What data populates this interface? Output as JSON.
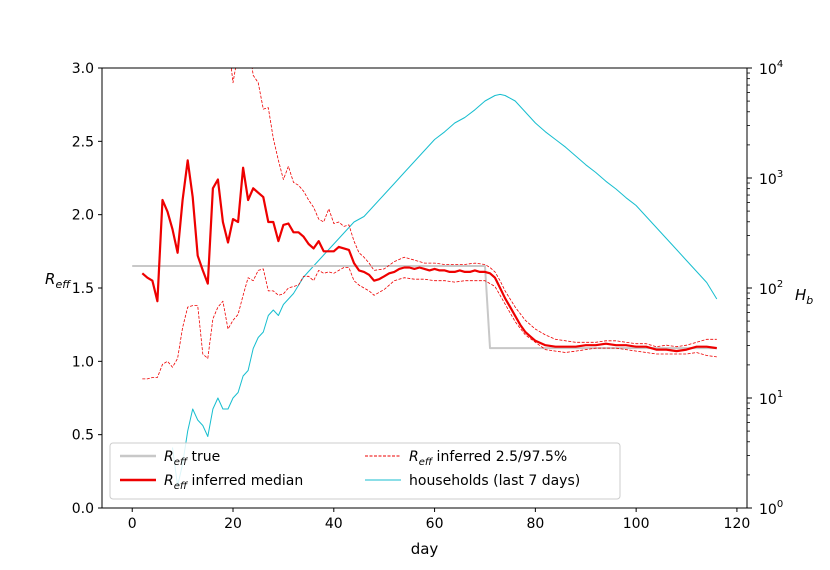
{
  "chart_data": {
    "type": "line",
    "xlabel": "day",
    "ylabel_left": "R",
    "ylabel_left_sub": "eff",
    "ylabel_right": "H",
    "ylabel_right_sub": "b",
    "xlim": [
      -6,
      122
    ],
    "ylim_left": [
      0,
      3
    ],
    "ylim_right_log10": [
      0,
      4
    ],
    "x_ticks": [
      0,
      20,
      40,
      60,
      80,
      100,
      120
    ],
    "y_left_ticks": [
      0.0,
      0.5,
      1.0,
      1.5,
      2.0,
      2.5,
      3.0
    ],
    "y_left_tick_labels": [
      "0.0",
      "0.5",
      "1.0",
      "1.5",
      "2.0",
      "2.5",
      "3.0"
    ],
    "y_right_ticks_exp": [
      0,
      1,
      2,
      3,
      4
    ],
    "y_right_tick_base": "10",
    "legend": {
      "position": "lower-left",
      "entries": [
        {
          "sym": "R",
          "sub": "eff",
          "text": " true",
          "color": "#c8c8c8",
          "style": "solid-thick"
        },
        {
          "sym": "R",
          "sub": "eff",
          "text": " inferred median",
          "color": "#ee0000",
          "style": "solid-bold"
        },
        {
          "sym": "R",
          "sub": "eff",
          "text": " inferred 2.5/97.5%",
          "color": "#ee0000",
          "style": "dashed"
        },
        {
          "sym": "",
          "sub": "",
          "text": "households (last 7 days)",
          "color": "#17becf",
          "style": "solid-thin"
        }
      ]
    },
    "series": {
      "true": {
        "color": "#c8c8c8",
        "x": [
          0,
          70,
          71,
          116
        ],
        "y": [
          1.65,
          1.65,
          1.09,
          1.09
        ]
      },
      "median": {
        "color": "#ee0000",
        "x": [
          2,
          3,
          4,
          5,
          6,
          7,
          8,
          9,
          10,
          11,
          12,
          13,
          14,
          15,
          16,
          17,
          18,
          19,
          20,
          21,
          22,
          23,
          24,
          25,
          26,
          27,
          28,
          29,
          30,
          31,
          32,
          33,
          34,
          35,
          36,
          37,
          38,
          39,
          40,
          41,
          42,
          43,
          44,
          45,
          46,
          47,
          48,
          49,
          50,
          51,
          52,
          53,
          54,
          55,
          56,
          57,
          58,
          59,
          60,
          61,
          62,
          63,
          64,
          65,
          66,
          67,
          68,
          69,
          70,
          71,
          72,
          73,
          74,
          75,
          76,
          77,
          78,
          79,
          80,
          82,
          84,
          86,
          88,
          90,
          92,
          94,
          96,
          98,
          100,
          102,
          104,
          106,
          108,
          110,
          112,
          114,
          116
        ],
        "y": [
          1.6,
          1.57,
          1.55,
          1.41,
          2.1,
          2.02,
          1.9,
          1.74,
          2.1,
          2.37,
          2.12,
          1.72,
          1.62,
          1.53,
          2.18,
          2.24,
          1.95,
          1.81,
          1.97,
          1.95,
          2.32,
          2.1,
          2.18,
          2.15,
          2.12,
          1.95,
          1.95,
          1.82,
          1.93,
          1.94,
          1.88,
          1.88,
          1.85,
          1.8,
          1.77,
          1.82,
          1.75,
          1.75,
          1.75,
          1.78,
          1.77,
          1.76,
          1.67,
          1.62,
          1.61,
          1.59,
          1.55,
          1.56,
          1.58,
          1.6,
          1.61,
          1.63,
          1.64,
          1.64,
          1.63,
          1.64,
          1.63,
          1.62,
          1.63,
          1.62,
          1.62,
          1.61,
          1.61,
          1.62,
          1.61,
          1.61,
          1.62,
          1.61,
          1.61,
          1.6,
          1.57,
          1.5,
          1.43,
          1.37,
          1.31,
          1.25,
          1.2,
          1.17,
          1.14,
          1.11,
          1.1,
          1.1,
          1.1,
          1.11,
          1.11,
          1.12,
          1.11,
          1.11,
          1.1,
          1.1,
          1.08,
          1.08,
          1.07,
          1.08,
          1.1,
          1.1,
          1.09
        ]
      },
      "upper": {
        "color": "#ee0000",
        "x": [
          16,
          17,
          18,
          19,
          20,
          21,
          22,
          23,
          24,
          25,
          26,
          27,
          28,
          29,
          30,
          31,
          32,
          33,
          34,
          35,
          36,
          37,
          38,
          39,
          40,
          41,
          42,
          43,
          44,
          45,
          46,
          47,
          48,
          50,
          52,
          54,
          56,
          58,
          60,
          62,
          64,
          66,
          68,
          70,
          71,
          72,
          73,
          74,
          76,
          78,
          80,
          82,
          84,
          86,
          88,
          90,
          92,
          94,
          96,
          98,
          100,
          102,
          104,
          106,
          108,
          110,
          112,
          114,
          116
        ],
        "y": [
          3.5,
          3.4,
          3.3,
          3.2,
          2.9,
          3.1,
          3.0,
          3.2,
          2.95,
          2.9,
          2.72,
          2.73,
          2.52,
          2.37,
          2.24,
          2.33,
          2.22,
          2.2,
          2.16,
          2.1,
          2.05,
          1.97,
          1.95,
          2.04,
          1.94,
          1.95,
          1.92,
          1.93,
          1.82,
          1.74,
          1.71,
          1.67,
          1.62,
          1.63,
          1.68,
          1.71,
          1.69,
          1.67,
          1.67,
          1.66,
          1.66,
          1.66,
          1.67,
          1.66,
          1.64,
          1.61,
          1.55,
          1.48,
          1.37,
          1.28,
          1.22,
          1.18,
          1.15,
          1.14,
          1.13,
          1.13,
          1.13,
          1.14,
          1.14,
          1.13,
          1.12,
          1.12,
          1.1,
          1.11,
          1.1,
          1.11,
          1.13,
          1.15,
          1.15
        ]
      },
      "lower": {
        "color": "#ee0000",
        "x": [
          2,
          3,
          4,
          5,
          6,
          7,
          8,
          9,
          10,
          11,
          12,
          13,
          14,
          15,
          16,
          17,
          18,
          19,
          20,
          21,
          22,
          23,
          24,
          25,
          26,
          27,
          28,
          29,
          30,
          31,
          32,
          33,
          34,
          35,
          36,
          37,
          38,
          39,
          40,
          41,
          42,
          43,
          44,
          45,
          46,
          47,
          48,
          50,
          52,
          54,
          56,
          58,
          60,
          62,
          64,
          66,
          68,
          70,
          71,
          72,
          73,
          74,
          76,
          78,
          80,
          82,
          84,
          86,
          88,
          90,
          92,
          94,
          96,
          98,
          100,
          102,
          104,
          106,
          108,
          110,
          112,
          114,
          116
        ],
        "y": [
          0.88,
          0.88,
          0.89,
          0.89,
          0.98,
          1.0,
          0.96,
          1.02,
          1.23,
          1.37,
          1.38,
          1.38,
          1.05,
          1.02,
          1.29,
          1.37,
          1.41,
          1.22,
          1.28,
          1.32,
          1.45,
          1.57,
          1.55,
          1.62,
          1.63,
          1.48,
          1.48,
          1.45,
          1.46,
          1.5,
          1.51,
          1.52,
          1.58,
          1.58,
          1.55,
          1.62,
          1.6,
          1.61,
          1.6,
          1.62,
          1.64,
          1.64,
          1.55,
          1.52,
          1.5,
          1.48,
          1.45,
          1.49,
          1.55,
          1.57,
          1.56,
          1.56,
          1.55,
          1.55,
          1.54,
          1.55,
          1.55,
          1.55,
          1.53,
          1.51,
          1.45,
          1.39,
          1.27,
          1.18,
          1.13,
          1.08,
          1.07,
          1.06,
          1.07,
          1.08,
          1.09,
          1.09,
          1.09,
          1.08,
          1.07,
          1.06,
          1.05,
          1.05,
          1.05,
          1.05,
          1.06,
          1.04,
          1.03
        ]
      },
      "households": {
        "color": "#17becf",
        "axis": "right-log",
        "x": [
          8,
          9,
          10,
          11,
          12,
          13,
          14,
          15,
          16,
          17,
          18,
          19,
          20,
          21,
          22,
          23,
          24,
          25,
          26,
          27,
          28,
          29,
          30,
          32,
          34,
          36,
          38,
          40,
          42,
          44,
          46,
          48,
          50,
          52,
          54,
          56,
          58,
          60,
          62,
          64,
          66,
          68,
          70,
          72,
          73,
          74,
          76,
          78,
          80,
          82,
          84,
          86,
          88,
          90,
          92,
          94,
          96,
          98,
          100,
          102,
          104,
          106,
          108,
          110,
          112,
          114,
          116
        ],
        "y": [
          0.55,
          0.2,
          0.4,
          0.7,
          0.9,
          0.8,
          0.75,
          0.65,
          0.9,
          1.0,
          0.9,
          0.9,
          1.0,
          1.05,
          1.2,
          1.25,
          1.45,
          1.55,
          1.6,
          1.75,
          1.8,
          1.75,
          1.85,
          1.95,
          2.1,
          2.2,
          2.3,
          2.4,
          2.5,
          2.6,
          2.65,
          2.75,
          2.85,
          2.95,
          3.05,
          3.15,
          3.25,
          3.35,
          3.42,
          3.5,
          3.55,
          3.62,
          3.7,
          3.75,
          3.76,
          3.75,
          3.7,
          3.6,
          3.5,
          3.42,
          3.35,
          3.28,
          3.2,
          3.12,
          3.05,
          2.97,
          2.9,
          2.82,
          2.75,
          2.65,
          2.55,
          2.45,
          2.35,
          2.25,
          2.15,
          2.05,
          1.9
        ]
      }
    }
  }
}
